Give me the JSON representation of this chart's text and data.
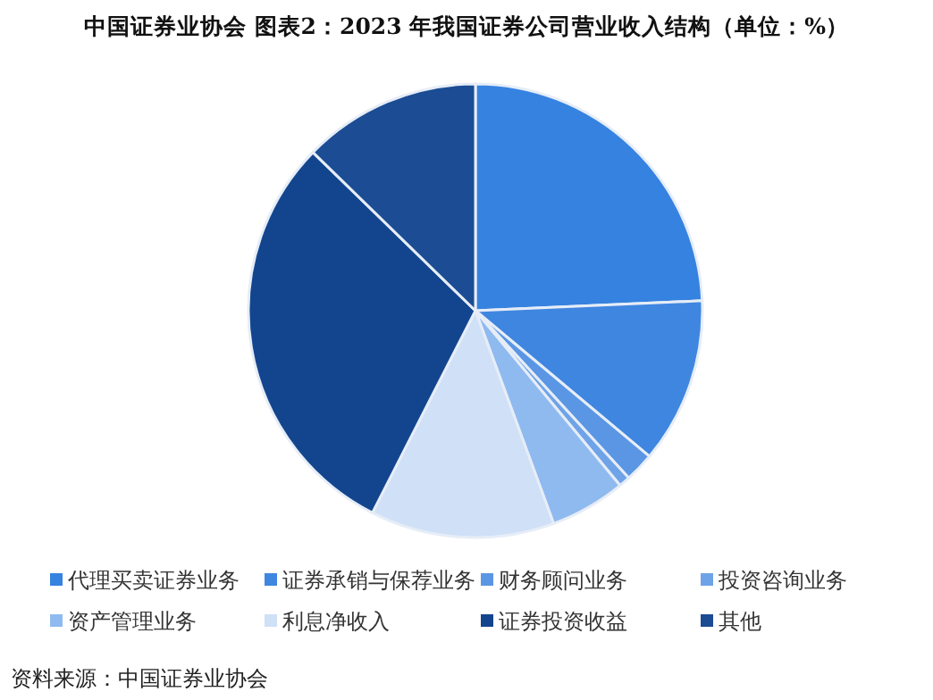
{
  "chart_data": {
    "type": "pie",
    "title": "中国证券业协会  图表2：2023 年我国证券公司营业收入结构（单位：%）",
    "categories": [
      "代理买卖证券业务",
      "证券承销与保荐业务",
      "财务顾问业务",
      "投资咨询业务",
      "资产管理业务",
      "利息净收入",
      "证券投资收益",
      "其他"
    ],
    "values": [
      24.3,
      11.8,
      2.1,
      0.8,
      5.4,
      13.1,
      29.8,
      12.7
    ],
    "colors": [
      "#3682e0",
      "#3f86e0",
      "#5a96e4",
      "#6ea3e8",
      "#8fbaf0",
      "#cfe0f7",
      "#13458f",
      "#1b4c94"
    ],
    "legend": "bottom",
    "annotations": [
      "资料来源：中国证券业协会"
    ]
  }
}
